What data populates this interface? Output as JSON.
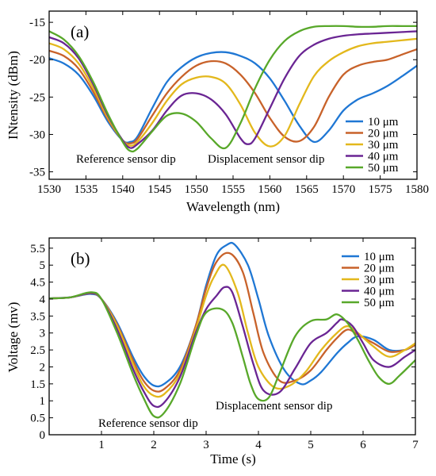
{
  "chart_data": [
    {
      "type": "line",
      "panel_label": "(a)",
      "xlabel": "Wavelength (nm)",
      "ylabel": "INtensity (dBm)",
      "xlim": [
        1530,
        1580
      ],
      "ylim": [
        -36,
        -13.5
      ],
      "xticks": [
        1530,
        1535,
        1540,
        1545,
        1550,
        1555,
        1560,
        1565,
        1570,
        1575,
        1580
      ],
      "yticks": [
        -35,
        -30,
        -25,
        -20,
        -15
      ],
      "grid": false,
      "legend_position": "bottom-right",
      "annotations": [
        {
          "text": "Reference sensor dip",
          "x": 1541,
          "y": -33.7
        },
        {
          "text": "Displacement sensor dip",
          "x": 1560,
          "y": -33.7
        }
      ],
      "series": [
        {
          "name": "10 μm",
          "color": "#1f77d4",
          "x": [
            1530,
            1532,
            1534,
            1536,
            1538,
            1540,
            1541,
            1542,
            1544,
            1546,
            1548,
            1550,
            1552,
            1554,
            1556,
            1558,
            1560,
            1562,
            1564,
            1566,
            1568,
            1570,
            1572,
            1574,
            1576,
            1578,
            1580
          ],
          "y": [
            -19.8,
            -20.5,
            -22.0,
            -24.8,
            -28.3,
            -30.8,
            -31.0,
            -30.3,
            -26.5,
            -23.0,
            -21.0,
            -19.7,
            -19.1,
            -19.0,
            -19.5,
            -20.5,
            -22.5,
            -25.5,
            -28.8,
            -31.0,
            -29.5,
            -26.8,
            -25.3,
            -24.5,
            -23.5,
            -22.2,
            -20.8
          ]
        },
        {
          "name": "20 μm",
          "color": "#c8622a",
          "x": [
            1530,
            1532,
            1534,
            1536,
            1538,
            1540,
            1541,
            1542,
            1544,
            1546,
            1548,
            1550,
            1552,
            1554,
            1556,
            1558,
            1560,
            1562,
            1564,
            1566,
            1568,
            1570,
            1572,
            1574,
            1576,
            1578,
            1580
          ],
          "y": [
            -18.8,
            -19.5,
            -21.2,
            -24.3,
            -28.0,
            -30.8,
            -31.2,
            -30.6,
            -27.5,
            -24.5,
            -22.3,
            -20.8,
            -20.2,
            -20.5,
            -22.0,
            -24.5,
            -27.8,
            -30.3,
            -30.9,
            -29.0,
            -25.0,
            -22.0,
            -20.8,
            -20.3,
            -20.0,
            -19.3,
            -18.6
          ]
        },
        {
          "name": "30 μm",
          "color": "#e3b81c",
          "x": [
            1530,
            1532,
            1534,
            1536,
            1538,
            1540,
            1541,
            1542,
            1544,
            1546,
            1548,
            1550,
            1552,
            1554,
            1556,
            1558,
            1560,
            1562,
            1564,
            1566,
            1568,
            1570,
            1572,
            1574,
            1576,
            1578,
            1580
          ],
          "y": [
            -17.8,
            -18.6,
            -20.5,
            -23.8,
            -27.8,
            -30.8,
            -31.5,
            -31.0,
            -28.5,
            -25.5,
            -23.3,
            -22.4,
            -22.3,
            -23.2,
            -26.0,
            -29.8,
            -31.6,
            -30.2,
            -26.0,
            -22.2,
            -20.2,
            -19.0,
            -18.2,
            -17.8,
            -17.6,
            -17.4,
            -17.2
          ]
        },
        {
          "name": "40 μm",
          "color": "#6a2593",
          "x": [
            1530,
            1532,
            1534,
            1536,
            1538,
            1540,
            1541,
            1542,
            1544,
            1546,
            1548,
            1550,
            1552,
            1554,
            1556,
            1557,
            1558,
            1560,
            1562,
            1564,
            1566,
            1568,
            1570,
            1572,
            1574,
            1576,
            1578,
            1580
          ],
          "y": [
            -17.0,
            -17.8,
            -19.8,
            -23.3,
            -27.5,
            -30.8,
            -31.8,
            -31.3,
            -29.5,
            -26.8,
            -24.8,
            -24.5,
            -25.3,
            -27.3,
            -30.5,
            -31.3,
            -30.5,
            -26.5,
            -22.5,
            -19.5,
            -18.0,
            -17.2,
            -16.8,
            -16.6,
            -16.5,
            -16.4,
            -16.3,
            -16.2
          ]
        },
        {
          "name": "50 μm",
          "color": "#58a82a",
          "x": [
            1530,
            1532,
            1534,
            1536,
            1538,
            1540,
            1541,
            1542,
            1544,
            1546,
            1548,
            1550,
            1552,
            1554,
            1556,
            1558,
            1560,
            1562,
            1564,
            1566,
            1568,
            1570,
            1572,
            1574,
            1576,
            1578,
            1580
          ],
          "y": [
            -16.2,
            -17.3,
            -19.5,
            -23.0,
            -27.3,
            -31.0,
            -32.2,
            -31.9,
            -29.6,
            -27.5,
            -27.2,
            -28.3,
            -30.5,
            -31.8,
            -28.5,
            -23.8,
            -20.0,
            -17.5,
            -16.2,
            -15.6,
            -15.5,
            -15.5,
            -15.6,
            -15.6,
            -15.5,
            -15.5,
            -15.5
          ]
        }
      ]
    },
    {
      "type": "line",
      "panel_label": "(b)",
      "xlabel": "Time (s)",
      "ylabel": "Voltage (mv)",
      "xlim": [
        0,
        7
      ],
      "ylim": [
        0,
        5.8
      ],
      "xticks": [
        1,
        2,
        3,
        4,
        5,
        6,
        7
      ],
      "yticks": [
        0,
        0.5,
        1,
        1.5,
        2,
        2.5,
        3,
        3.5,
        4,
        4.5,
        5,
        5.5
      ],
      "grid": false,
      "legend_position": "top-right",
      "annotations": [
        {
          "text": "Reference sensor dip",
          "x": 2.08,
          "y": 0.18
        },
        {
          "text": "Displacement sensor dip",
          "x": 4.6,
          "y": 0.45
        }
      ],
      "series": [
        {
          "name": "10 μm",
          "color": "#1f77d4",
          "x": [
            0,
            0.4,
            0.8,
            1.0,
            1.3,
            1.6,
            1.8,
            2.0,
            2.2,
            2.5,
            2.8,
            3.0,
            3.2,
            3.4,
            3.55,
            3.8,
            4.0,
            4.2,
            4.5,
            4.8,
            5.0,
            5.2,
            5.5,
            5.7,
            5.9,
            6.2,
            6.5,
            6.8,
            7.0
          ],
          "y": [
            4.02,
            4.05,
            4.15,
            4.0,
            3.3,
            2.3,
            1.75,
            1.45,
            1.5,
            2.0,
            3.2,
            4.4,
            5.3,
            5.6,
            5.6,
            5.0,
            4.0,
            2.9,
            1.9,
            1.5,
            1.6,
            1.85,
            2.4,
            2.7,
            2.9,
            2.8,
            2.5,
            2.5,
            2.65
          ]
        },
        {
          "name": "20 μm",
          "color": "#c8622a",
          "x": [
            0,
            0.4,
            0.8,
            1.0,
            1.3,
            1.6,
            1.8,
            2.0,
            2.2,
            2.5,
            2.8,
            3.0,
            3.2,
            3.45,
            3.7,
            3.9,
            4.1,
            4.4,
            4.7,
            5.0,
            5.3,
            5.5,
            5.7,
            5.9,
            6.2,
            6.5,
            6.8,
            7.0
          ],
          "y": [
            4.02,
            4.05,
            4.17,
            4.0,
            3.25,
            2.2,
            1.6,
            1.3,
            1.35,
            1.9,
            3.2,
            4.3,
            5.1,
            5.35,
            4.8,
            3.6,
            2.4,
            1.6,
            1.6,
            1.9,
            2.5,
            2.85,
            3.1,
            2.95,
            2.7,
            2.45,
            2.5,
            2.65
          ]
        },
        {
          "name": "30 μm",
          "color": "#e3b81c",
          "x": [
            0,
            0.4,
            0.8,
            1.0,
            1.3,
            1.6,
            1.8,
            2.0,
            2.2,
            2.5,
            2.8,
            3.0,
            3.15,
            3.35,
            3.6,
            3.8,
            4.0,
            4.3,
            4.6,
            4.9,
            5.2,
            5.5,
            5.7,
            5.9,
            6.2,
            6.5,
            6.8,
            7.0
          ],
          "y": [
            4.02,
            4.05,
            4.18,
            4.0,
            3.2,
            2.1,
            1.45,
            1.15,
            1.2,
            1.8,
            3.1,
            4.1,
            4.65,
            5.0,
            4.2,
            3.0,
            2.0,
            1.4,
            1.45,
            1.85,
            2.5,
            3.0,
            3.2,
            3.0,
            2.6,
            2.3,
            2.5,
            2.7
          ]
        },
        {
          "name": "40 μm",
          "color": "#6a2593",
          "x": [
            0,
            0.4,
            0.8,
            1.0,
            1.3,
            1.6,
            1.8,
            2.0,
            2.2,
            2.5,
            2.8,
            3.0,
            3.2,
            3.35,
            3.5,
            3.7,
            3.9,
            4.1,
            4.4,
            4.7,
            5.0,
            5.3,
            5.5,
            5.6,
            5.8,
            6.0,
            6.2,
            6.5,
            6.8,
            7.0
          ],
          "y": [
            4.02,
            4.05,
            4.18,
            4.0,
            3.1,
            1.95,
            1.3,
            0.85,
            0.95,
            1.7,
            3.0,
            3.7,
            4.1,
            4.35,
            4.2,
            3.2,
            2.1,
            1.3,
            1.25,
            1.95,
            2.7,
            3.0,
            3.3,
            3.4,
            3.2,
            2.7,
            2.2,
            2.0,
            2.3,
            2.5
          ]
        },
        {
          "name": "50 μm",
          "color": "#58a82a",
          "x": [
            0,
            0.4,
            0.8,
            1.0,
            1.3,
            1.6,
            1.8,
            2.0,
            2.2,
            2.5,
            2.8,
            3.0,
            3.3,
            3.5,
            3.7,
            3.85,
            4.0,
            4.2,
            4.4,
            4.7,
            5.0,
            5.3,
            5.5,
            5.7,
            5.9,
            6.1,
            6.3,
            6.5,
            6.7,
            7.0
          ],
          "y": [
            4.02,
            4.05,
            4.2,
            4.0,
            3.0,
            1.8,
            1.1,
            0.55,
            0.65,
            1.5,
            2.9,
            3.6,
            3.7,
            3.3,
            2.3,
            1.5,
            1.05,
            1.1,
            1.8,
            2.9,
            3.35,
            3.4,
            3.55,
            3.3,
            2.8,
            2.2,
            1.7,
            1.5,
            1.75,
            2.2
          ]
        }
      ]
    }
  ]
}
